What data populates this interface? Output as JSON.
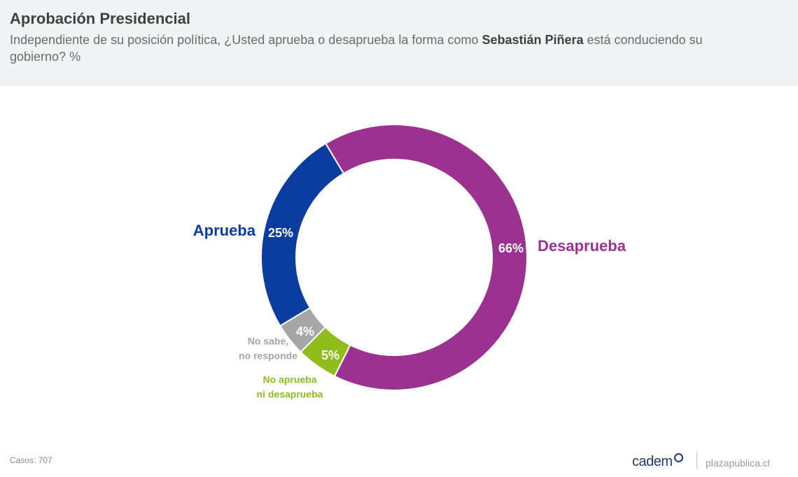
{
  "header": {
    "title": "Aprobación Presidencial",
    "question_before": "Independiente de su posición política, ¿Usted aprueba o desaprueba la forma como ",
    "question_name": "Sebastián Piñera",
    "question_after": " está conduciendo su gobierno? %"
  },
  "chart_data": {
    "type": "pie",
    "style": "donut",
    "unit": "%",
    "slices": [
      {
        "label_lines": [
          "Desaprueba"
        ],
        "value": 66,
        "display": "66%",
        "color": "#9b3291"
      },
      {
        "label_lines": [
          "No aprueba",
          "ni desaprueba"
        ],
        "value": 5,
        "display": "5%",
        "color": "#8fbd1c"
      },
      {
        "label_lines": [
          "No sabe,",
          "no responde"
        ],
        "value": 4,
        "display": "4%",
        "color": "#a6a6a6"
      },
      {
        "label_lines": [
          "Aprueba"
        ],
        "value": 25,
        "display": "25%",
        "color": "#0b3c9f"
      }
    ]
  },
  "footer": {
    "cases": "Casos: 707",
    "brand": "cadem",
    "site": "plazapublica.cl"
  }
}
